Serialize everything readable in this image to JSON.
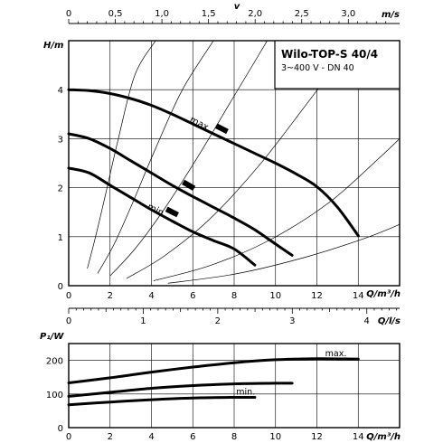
{
  "chart_data": [
    {
      "type": "line",
      "title": "Wilo-TOP-S 40/4",
      "subtitle": "3~400 V - DN 40",
      "top_axis": {
        "label": "v",
        "unit": "m/s",
        "ticks": [
          "0",
          "0,5",
          "1,0",
          "1,5",
          "2,0",
          "2,5",
          "3,0"
        ],
        "range": [
          0,
          3.55
        ]
      },
      "xlabel": "Q/m³/h",
      "ylabel": "H/m",
      "xticks": [
        "0",
        "2",
        "4",
        "6",
        "8",
        "10",
        "12",
        "14"
      ],
      "yticks": [
        "0",
        "1",
        "2",
        "3",
        "4"
      ],
      "xlim": [
        0,
        16
      ],
      "ylim": [
        0,
        5
      ],
      "grid": true,
      "series": [
        {
          "name": "max.",
          "x": [
            0,
            1,
            2,
            3,
            4,
            5,
            6,
            7,
            8,
            9,
            10,
            11,
            12,
            13,
            14
          ],
          "y": [
            4.0,
            3.98,
            3.92,
            3.82,
            3.68,
            3.5,
            3.3,
            3.1,
            2.9,
            2.7,
            2.5,
            2.28,
            2.02,
            1.6,
            1.02
          ]
        },
        {
          "name": "",
          "x": [
            0,
            1,
            2,
            3,
            4,
            5,
            6,
            7,
            8,
            9,
            10,
            10.8
          ],
          "y": [
            3.1,
            3.0,
            2.8,
            2.55,
            2.3,
            2.05,
            1.82,
            1.6,
            1.38,
            1.14,
            0.85,
            0.62
          ]
        },
        {
          "name": "min.",
          "x": [
            0,
            1,
            2,
            3,
            4,
            5,
            6,
            7,
            8,
            9
          ],
          "y": [
            2.4,
            2.3,
            2.05,
            1.8,
            1.55,
            1.32,
            1.1,
            0.92,
            0.75,
            0.42
          ]
        }
      ],
      "system_curves": [
        {
          "x": [
            0.9,
            1.3,
            1.8,
            2.4,
            3.2,
            4.2
          ],
          "y": [
            0.35,
            1.0,
            1.9,
            3.0,
            4.3,
            5.0
          ]
        },
        {
          "x": [
            1.4,
            2.2,
            3.1,
            4.2,
            5.5,
            7.0
          ],
          "y": [
            0.25,
            0.85,
            1.7,
            2.8,
            4.0,
            5.0
          ]
        },
        {
          "x": [
            2.0,
            3.2,
            4.6,
            6.2,
            7.9,
            9.6
          ],
          "y": [
            0.2,
            0.75,
            1.55,
            2.6,
            3.8,
            5.0
          ]
        },
        {
          "x": [
            2.8,
            4.6,
            6.8,
            9.2,
            11.4,
            13.1
          ],
          "y": [
            0.15,
            0.6,
            1.35,
            2.45,
            3.65,
            4.6
          ]
        },
        {
          "x": [
            4.1,
            6.9,
            9.8,
            12.6,
            15.0,
            16.0
          ],
          "y": [
            0.1,
            0.42,
            0.95,
            1.7,
            2.6,
            3.0
          ]
        },
        {
          "x": [
            4.8,
            8.2,
            11.6,
            14.4,
            16.0
          ],
          "y": [
            0.05,
            0.25,
            0.6,
            0.98,
            1.25
          ]
        }
      ]
    },
    {
      "type": "line",
      "top_axis": {
        "label": "",
        "unit": "Q/l/s",
        "ticks": [
          "0",
          "1",
          "2",
          "3",
          "4"
        ],
        "range": [
          0,
          4.44
        ]
      },
      "xlabel": "Q/m³/h",
      "ylabel": "P₁/W",
      "xticks": [
        "0",
        "2",
        "4",
        "6",
        "8",
        "10",
        "12",
        "14"
      ],
      "yticks": [
        "0",
        "100",
        "200"
      ],
      "xlim": [
        0,
        16
      ],
      "ylim": [
        0,
        250
      ],
      "grid": true,
      "series": [
        {
          "name": "max.",
          "x": [
            0,
            2,
            4,
            6,
            8,
            10,
            12,
            14
          ],
          "y": [
            133,
            148,
            165,
            180,
            193,
            202,
            205,
            204
          ]
        },
        {
          "name": "",
          "x": [
            0,
            2,
            4,
            6,
            8,
            10,
            10.8
          ],
          "y": [
            93,
            105,
            117,
            125,
            130,
            132,
            132
          ]
        },
        {
          "name": "min.",
          "x": [
            0,
            2,
            4,
            6,
            8,
            9
          ],
          "y": [
            68,
            76,
            83,
            88,
            90,
            90
          ]
        }
      ]
    }
  ]
}
